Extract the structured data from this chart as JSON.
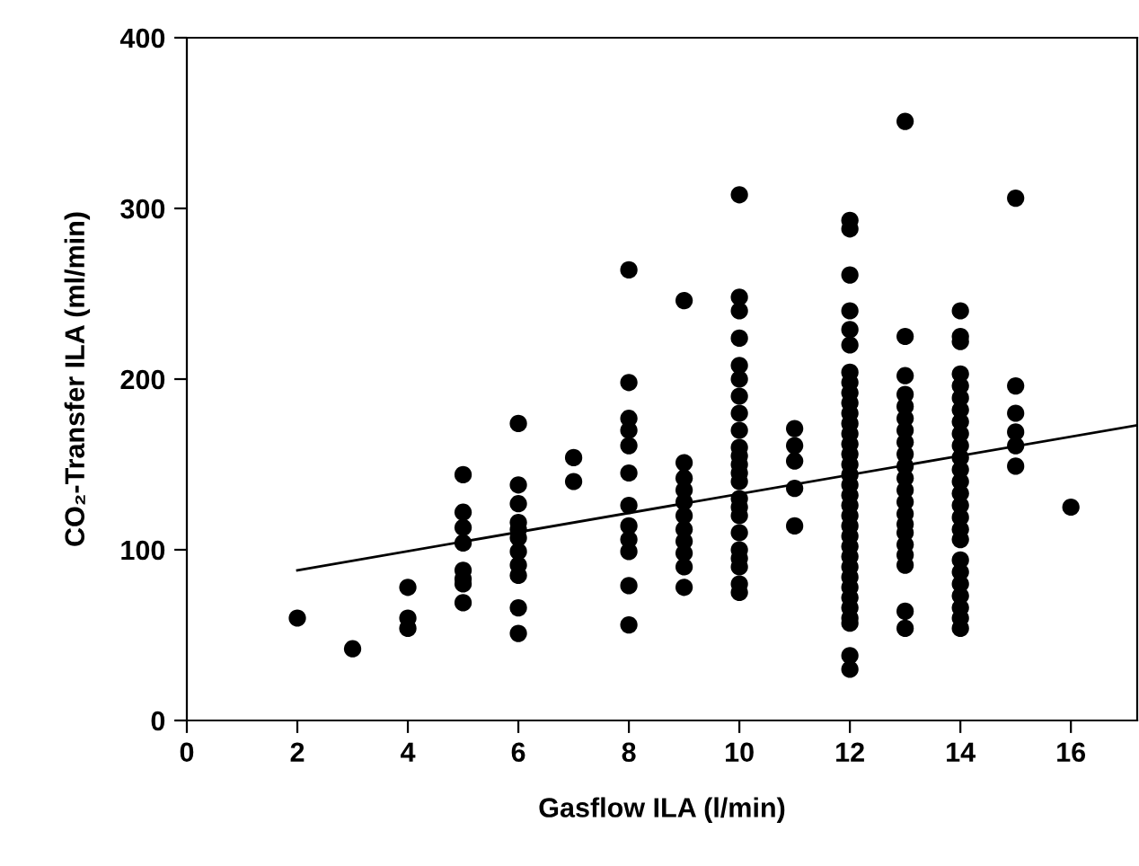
{
  "chart_data": {
    "type": "scatter",
    "xlabel": "Gasflow ILA (l/min)",
    "ylabel": "CO₂-Transfer ILA (ml/min)",
    "xlim": [
      0,
      17.2
    ],
    "ylim": [
      0,
      400
    ],
    "xticks": [
      0,
      2,
      4,
      6,
      8,
      10,
      12,
      14,
      16
    ],
    "yticks": [
      0,
      100,
      200,
      300,
      400
    ],
    "grid": false,
    "legend": false,
    "series": [
      {
        "color": "#000000",
        "marker": "circle",
        "x": [
          2,
          3,
          4,
          4,
          4,
          5,
          5,
          5,
          5,
          5,
          5,
          5,
          5,
          6,
          6,
          6,
          6,
          6,
          6,
          6,
          6,
          6,
          6,
          6,
          7,
          7,
          8,
          8,
          8,
          8,
          8,
          8,
          8,
          8,
          8,
          8,
          8,
          8,
          9,
          9,
          9,
          9,
          9,
          9,
          9,
          9,
          9,
          9,
          9,
          10,
          10,
          10,
          10,
          10,
          10,
          10,
          10,
          10,
          10,
          10,
          10,
          10,
          10,
          10,
          10,
          10,
          10,
          10,
          10,
          10,
          10,
          10,
          11,
          11,
          11,
          11,
          11,
          12,
          12,
          12,
          12,
          12,
          12,
          12,
          12,
          12,
          12,
          12,
          12,
          12,
          12,
          12,
          12,
          12,
          12,
          12,
          12,
          12,
          12,
          12,
          12,
          12,
          12,
          12,
          12,
          12,
          12,
          12,
          12,
          12,
          12,
          13,
          13,
          13,
          13,
          13,
          13,
          13,
          13,
          13,
          13,
          13,
          13,
          13,
          13,
          13,
          13,
          13,
          13,
          13,
          13,
          13,
          14,
          14,
          14,
          14,
          14,
          14,
          14,
          14,
          14,
          14,
          14,
          14,
          14,
          14,
          14,
          14,
          14,
          14,
          14,
          14,
          14,
          14,
          14,
          14,
          14,
          15,
          15,
          15,
          15,
          15,
          15,
          16
        ],
        "values": [
          60,
          42,
          78,
          60,
          54,
          144,
          122,
          113,
          104,
          88,
          83,
          80,
          69,
          174,
          138,
          127,
          116,
          112,
          107,
          99,
          91,
          85,
          66,
          51,
          154,
          140,
          264,
          198,
          177,
          170,
          161,
          145,
          126,
          114,
          106,
          99,
          79,
          56,
          246,
          151,
          142,
          135,
          128,
          120,
          112,
          105,
          98,
          90,
          78,
          308,
          248,
          240,
          224,
          208,
          200,
          190,
          180,
          170,
          160,
          155,
          150,
          145,
          140,
          130,
          125,
          120,
          110,
          100,
          95,
          90,
          80,
          75,
          171,
          161,
          152,
          136,
          114,
          293,
          288,
          261,
          240,
          229,
          220,
          204,
          198,
          192,
          186,
          180,
          174,
          168,
          162,
          156,
          150,
          144,
          138,
          132,
          126,
          120,
          114,
          108,
          102,
          96,
          90,
          84,
          78,
          72,
          66,
          60,
          57,
          38,
          30,
          351,
          225,
          202,
          191,
          184,
          177,
          170,
          163,
          156,
          149,
          142,
          135,
          128,
          121,
          115,
          110,
          103,
          97,
          91,
          64,
          54,
          240,
          225,
          222,
          203,
          196,
          189,
          182,
          175,
          168,
          161,
          154,
          147,
          140,
          133,
          126,
          119,
          112,
          106,
          94,
          87,
          80,
          73,
          66,
          60,
          54,
          306,
          196,
          180,
          169,
          161,
          149,
          125
        ]
      },
      {
        "type": "line",
        "color": "#000000",
        "x": [
          2,
          17.2
        ],
        "values": [
          88,
          173
        ]
      }
    ]
  }
}
